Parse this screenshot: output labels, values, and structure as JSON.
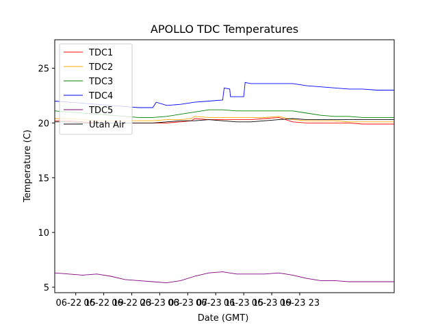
{
  "chart_data": {
    "type": "line",
    "title": "APOLLO TDC Temperatures",
    "xlabel": "Date (GMT)",
    "ylabel": "Temperature (C)",
    "xlim": [
      12.0,
      60.5
    ],
    "ylim": [
      4.5,
      27.6
    ],
    "x_units": "hours since 2025-06-22 00:00 GMT",
    "x_ticks": [
      {
        "value": 15,
        "label": "06-22 15"
      },
      {
        "value": 19,
        "label": "06-22 19"
      },
      {
        "value": 23,
        "label": "06-22 23"
      },
      {
        "value": 27,
        "label": "06-23 03"
      },
      {
        "value": 31,
        "label": "06-23 07"
      },
      {
        "value": 35,
        "label": "06-23 11"
      },
      {
        "value": 39,
        "label": "06-23 15"
      },
      {
        "value": 43,
        "label": "06-23 19"
      },
      {
        "value": 47,
        "label": "06-23 23"
      }
    ],
    "y_ticks": [
      {
        "value": 5,
        "label": "5"
      },
      {
        "value": 10,
        "label": "10"
      },
      {
        "value": 15,
        "label": "15"
      },
      {
        "value": 20,
        "label": "20"
      },
      {
        "value": 25,
        "label": "25"
      }
    ],
    "legend_position": "top-left",
    "series": [
      {
        "name": "TDC1",
        "color": "#ff0000",
        "x": [
          12.0,
          14.0,
          16.0,
          18.0,
          20.0,
          22.0,
          24.0,
          26.0,
          28.0,
          30.0,
          31.5,
          32.0,
          34.0,
          36.0,
          38.0,
          40.0,
          42.0,
          44.0,
          46.0,
          48.0,
          50.0,
          52.0,
          54.0,
          56.0,
          58.0,
          60.5
        ],
        "y": [
          20.2,
          20.2,
          20.1,
          20.0,
          20.0,
          20.0,
          20.0,
          20.0,
          20.0,
          20.1,
          20.2,
          20.4,
          20.3,
          20.3,
          20.3,
          20.3,
          20.4,
          20.5,
          20.1,
          20.0,
          20.0,
          20.0,
          20.0,
          19.9,
          19.9,
          19.9
        ]
      },
      {
        "name": "TDC2",
        "color": "#ffa500",
        "x": [
          12.0,
          14.0,
          16.0,
          18.0,
          20.0,
          22.0,
          24.0,
          26.0,
          28.0,
          30.0,
          31.5,
          32.0,
          34.0,
          36.0,
          38.0,
          40.0,
          42.0,
          44.0,
          46.0,
          48.0,
          50.0,
          52.0,
          54.0,
          56.0,
          58.0,
          60.5
        ],
        "y": [
          20.4,
          20.4,
          20.3,
          20.2,
          20.2,
          20.2,
          20.2,
          20.2,
          20.3,
          20.3,
          20.4,
          20.6,
          20.5,
          20.5,
          20.5,
          20.5,
          20.5,
          20.6,
          20.3,
          20.2,
          20.2,
          20.2,
          20.1,
          20.1,
          20.1,
          20.1
        ]
      },
      {
        "name": "TDC3",
        "color": "#008000",
        "x": [
          12.0,
          14.0,
          16.0,
          18.0,
          20.0,
          22.0,
          24.0,
          26.0,
          28.0,
          30.0,
          32.0,
          34.0,
          36.0,
          38.0,
          40.0,
          42.0,
          44.0,
          46.0,
          48.0,
          50.0,
          52.0,
          54.0,
          56.0,
          58.0,
          60.5
        ],
        "y": [
          21.1,
          21.0,
          20.9,
          20.8,
          20.7,
          20.6,
          20.5,
          20.5,
          20.6,
          20.8,
          21.0,
          21.2,
          21.2,
          21.1,
          21.1,
          21.1,
          21.1,
          21.1,
          20.9,
          20.7,
          20.6,
          20.6,
          20.5,
          20.5,
          20.5
        ]
      },
      {
        "name": "TDC4",
        "color": "#0000ff",
        "x": [
          12.0,
          14.0,
          16.0,
          18.0,
          20.0,
          22.0,
          24.0,
          26.0,
          26.5,
          28.0,
          30.0,
          32.0,
          34.0,
          36.0,
          36.2,
          37.0,
          37.1,
          39.0,
          39.2,
          40.0,
          42.0,
          44.0,
          46.0,
          48.0,
          50.0,
          52.0,
          54.0,
          56.0,
          58.0,
          60.5
        ],
        "y": [
          22.0,
          21.9,
          21.8,
          21.7,
          21.6,
          21.5,
          21.4,
          21.4,
          21.9,
          21.6,
          21.7,
          21.9,
          22.0,
          22.1,
          23.2,
          23.1,
          22.4,
          22.4,
          23.7,
          23.6,
          23.6,
          23.6,
          23.6,
          23.4,
          23.3,
          23.2,
          23.1,
          23.1,
          23.0,
          23.0
        ]
      },
      {
        "name": "TDC5",
        "color": "#800080",
        "x": [
          12.0,
          14.0,
          16.0,
          18.0,
          20.0,
          22.0,
          24.0,
          26.0,
          28.0,
          30.0,
          32.0,
          34.0,
          36.0,
          38.0,
          40.0,
          42.0,
          44.0,
          46.0,
          48.0,
          50.0,
          52.0,
          54.0,
          56.0,
          58.0,
          60.5
        ],
        "y": [
          6.3,
          6.2,
          6.1,
          6.2,
          6.0,
          5.7,
          5.6,
          5.5,
          5.4,
          5.6,
          6.0,
          6.3,
          6.4,
          6.2,
          6.2,
          6.2,
          6.3,
          6.1,
          5.8,
          5.6,
          5.6,
          5.5,
          5.5,
          5.5,
          5.5
        ]
      },
      {
        "name": "Utah Air",
        "color": "#000000",
        "x": [
          12.0,
          14.0,
          16.0,
          18.0,
          20.0,
          22.0,
          24.0,
          26.0,
          28.0,
          30.0,
          32.0,
          34.0,
          36.0,
          38.0,
          40.0,
          42.0,
          44.0,
          46.0,
          48.0,
          50.0,
          52.0,
          54.0,
          56.0,
          58.0,
          60.5
        ],
        "y": [
          20.1,
          20.1,
          20.0,
          20.0,
          20.0,
          20.0,
          20.0,
          20.0,
          20.1,
          20.2,
          20.2,
          20.3,
          20.2,
          20.1,
          20.1,
          20.2,
          20.3,
          20.4,
          20.3,
          20.3,
          20.3,
          20.3,
          20.3,
          20.3,
          20.3
        ]
      }
    ]
  }
}
